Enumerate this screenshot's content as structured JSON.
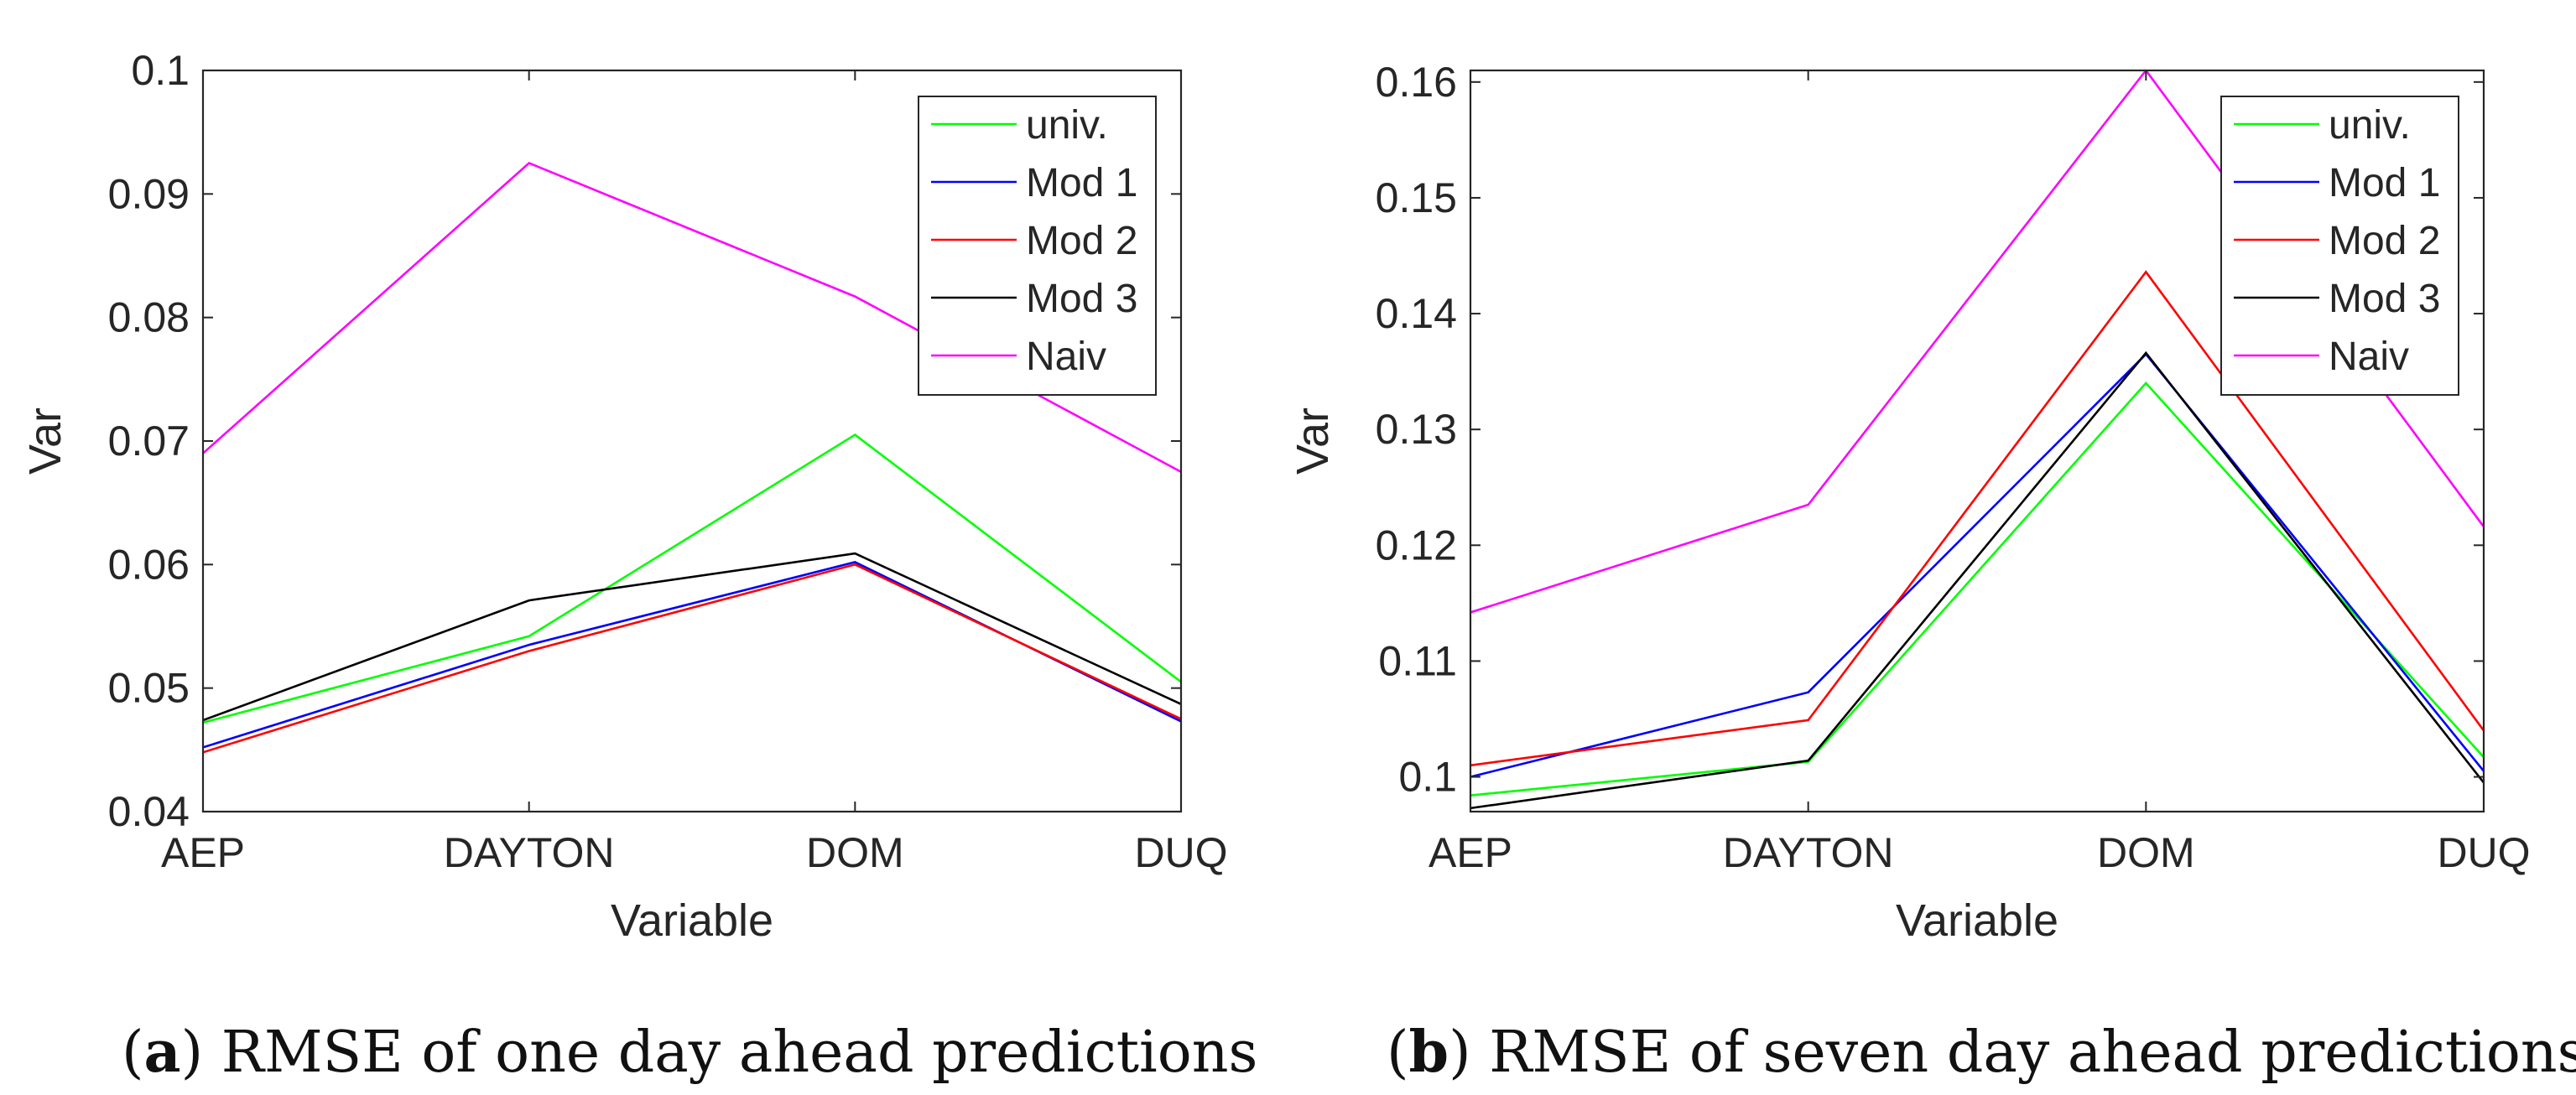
{
  "colors": {
    "univ": "#00ff00",
    "mod1": "#0000ff",
    "mod2": "#ff0000",
    "mod3": "#000000",
    "naiv": "#ff00ff",
    "axis": "#262626"
  },
  "chart_data": [
    {
      "type": "line",
      "title": "",
      "xlabel": "Variable",
      "ylabel": "Var",
      "categories": [
        "AEP",
        "DAYTON",
        "DOM",
        "DUQ"
      ],
      "ylim": [
        0.04,
        0.1
      ],
      "yticks": [
        0.04,
        0.05,
        0.06,
        0.07,
        0.08,
        0.09,
        0.1
      ],
      "ytick_labels": [
        "0.04",
        "0.05",
        "0.06",
        "0.07",
        "0.08",
        "0.09",
        "0.1"
      ],
      "grid": false,
      "legend_position": "top-right",
      "series": [
        {
          "key": "univ",
          "name": "univ.",
          "values": [
            0.0472,
            0.0542,
            0.0705,
            0.0505
          ]
        },
        {
          "key": "mod1",
          "name": "Mod 1",
          "values": [
            0.0452,
            0.0535,
            0.0602,
            0.0473
          ]
        },
        {
          "key": "mod2",
          "name": "Mod 2",
          "values": [
            0.0448,
            0.053,
            0.06,
            0.0475
          ]
        },
        {
          "key": "mod3",
          "name": "Mod 3",
          "values": [
            0.0474,
            0.0571,
            0.0609,
            0.0487
          ]
        },
        {
          "key": "naiv",
          "name": "Naiv",
          "values": [
            0.069,
            0.0925,
            0.0817,
            0.0675
          ]
        }
      ],
      "caption_label": "a",
      "caption_text": "RMSE of one day ahead predictions"
    },
    {
      "type": "line",
      "title": "",
      "xlabel": "Variable",
      "ylabel": "Var",
      "categories": [
        "AEP",
        "DAYTON",
        "DOM",
        "DUQ"
      ],
      "ylim": [
        0.097,
        0.161
      ],
      "yticks": [
        0.1,
        0.11,
        0.12,
        0.13,
        0.14,
        0.15,
        0.16
      ],
      "ytick_labels": [
        "0.1",
        "0.11",
        "0.12",
        "0.13",
        "0.14",
        "0.15",
        "0.16"
      ],
      "grid": false,
      "legend_position": "top-right",
      "series": [
        {
          "key": "univ",
          "name": "univ.",
          "values": [
            0.0984,
            0.1013,
            0.134,
            0.1017
          ]
        },
        {
          "key": "mod1",
          "name": "Mod 1",
          "values": [
            0.1,
            0.1073,
            0.1365,
            0.1005
          ]
        },
        {
          "key": "mod2",
          "name": "Mod 2",
          "values": [
            0.101,
            0.1049,
            0.1436,
            0.104
          ]
        },
        {
          "key": "mod3",
          "name": "Mod 3",
          "values": [
            0.0973,
            0.1014,
            0.1366,
            0.0995
          ]
        },
        {
          "key": "naiv",
          "name": "Naiv",
          "values": [
            0.1142,
            0.1235,
            0.161,
            0.1216
          ]
        }
      ],
      "caption_label": "b",
      "caption_text": "RMSE of seven day ahead predictions"
    }
  ]
}
